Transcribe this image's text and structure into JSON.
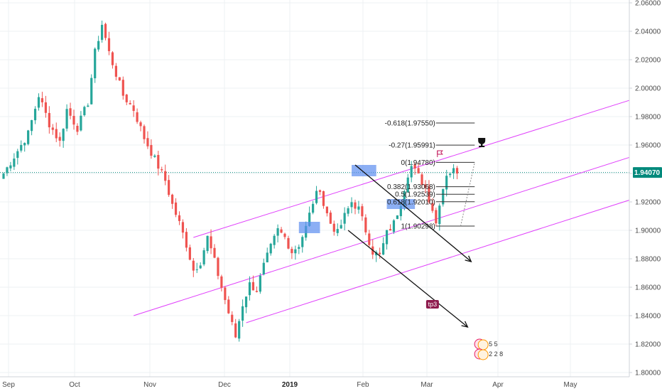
{
  "chart_data": {
    "type": "candlestick",
    "price_axis": {
      "ticks": [
        "2.06000",
        "2.04000",
        "2.02000",
        "2.00000",
        "1.98000",
        "1.96000",
        "1.94000",
        "1.92000",
        "1.90000",
        "1.88000",
        "1.86000",
        "1.84000",
        "1.82000",
        "1.80000"
      ],
      "range": [
        1.8,
        2.06
      ],
      "current_price": "1.94070",
      "current_price_color": "#00897b"
    },
    "time_axis": {
      "labels": [
        {
          "text": "Sep",
          "bold": false
        },
        {
          "text": "Oct",
          "bold": false
        },
        {
          "text": "Nov",
          "bold": false
        },
        {
          "text": "Dec",
          "bold": false
        },
        {
          "text": "2019",
          "bold": true
        },
        {
          "text": "Feb",
          "bold": false
        },
        {
          "text": "Mar",
          "bold": false
        },
        {
          "text": "Apr",
          "bold": false
        },
        {
          "text": "May",
          "bold": false
        }
      ]
    },
    "candle_colors": {
      "up": "#26a69a",
      "down": "#ef5350"
    },
    "close_path": [
      [
        0,
        1.94
      ],
      [
        3,
        1.952
      ],
      [
        7,
        1.968
      ],
      [
        10,
        1.995
      ],
      [
        13,
        1.975
      ],
      [
        16,
        1.962
      ],
      [
        18,
        1.985
      ],
      [
        21,
        1.972
      ],
      [
        24,
        1.99
      ],
      [
        26,
        2.025
      ],
      [
        28,
        2.045
      ],
      [
        30,
        2.025
      ],
      [
        32,
        2.01
      ],
      [
        34,
        1.995
      ],
      [
        37,
        1.985
      ],
      [
        40,
        1.965
      ],
      [
        42,
        1.955
      ],
      [
        44,
        1.945
      ],
      [
        46,
        1.935
      ],
      [
        48,
        1.918
      ],
      [
        50,
        1.905
      ],
      [
        52,
        1.89
      ],
      [
        54,
        1.872
      ],
      [
        56,
        1.878
      ],
      [
        58,
        1.895
      ],
      [
        60,
        1.878
      ],
      [
        62,
        1.86
      ],
      [
        64,
        1.842
      ],
      [
        66,
        1.825
      ],
      [
        68,
        1.848
      ],
      [
        70,
        1.862
      ],
      [
        72,
        1.858
      ],
      [
        74,
        1.875
      ],
      [
        76,
        1.888
      ],
      [
        78,
        1.9
      ],
      [
        80,
        1.895
      ],
      [
        82,
        1.885
      ],
      [
        84,
        1.89
      ],
      [
        86,
        1.902
      ],
      [
        88,
        1.92
      ],
      [
        90,
        1.93
      ],
      [
        91,
        1.918
      ],
      [
        93,
        1.905
      ],
      [
        95,
        1.898
      ],
      [
        97,
        1.91
      ],
      [
        99,
        1.92
      ],
      [
        101,
        1.915
      ],
      [
        103,
        1.9
      ],
      [
        105,
        1.885
      ],
      [
        107,
        1.882
      ],
      [
        109,
        1.898
      ],
      [
        111,
        1.905
      ],
      [
        113,
        1.92
      ],
      [
        115,
        1.94
      ],
      [
        116,
        1.945
      ],
      [
        118,
        1.938
      ],
      [
        120,
        1.93
      ],
      [
        122,
        1.915
      ],
      [
        123,
        1.905
      ],
      [
        124,
        1.92
      ],
      [
        126,
        1.94
      ],
      [
        128,
        1.942
      ],
      [
        129,
        1.94
      ]
    ],
    "channel": {
      "color": "#e040fb",
      "lines": [
        {
          "p1": [
            54,
            1.895
          ],
          "p2": [
            189,
            2.0
          ]
        },
        {
          "p1": [
            37,
            1.84
          ],
          "p2": [
            189,
            1.96
          ]
        },
        {
          "p1": [
            69,
            1.835
          ],
          "p2": [
            189,
            1.93
          ]
        }
      ]
    },
    "fib_retracement": {
      "color": "#333333",
      "levels": [
        {
          "label": "-0.618(1.97550)",
          "price": 1.9755
        },
        {
          "label": "-0.27(1.95991)",
          "price": 1.95991
        },
        {
          "label": "0(1.94780)",
          "price": 1.9478
        },
        {
          "label": "0.382(1.93068)",
          "price": 1.93068
        },
        {
          "label": "0.5(1.92539)",
          "price": 1.92539
        },
        {
          "label": "0.618(1.92010)",
          "price": 1.9201
        },
        {
          "label": "1(1.90298)",
          "price": 1.90298
        }
      ]
    },
    "highlight_boxes": [
      {
        "x": [
          84,
          90
        ],
        "price": [
          1.906,
          1.898
        ]
      },
      {
        "x": [
          99,
          106
        ],
        "price": [
          1.946,
          1.938
        ]
      },
      {
        "x": [
          109,
          117
        ],
        "price": [
          1.922,
          1.915
        ]
      }
    ],
    "arrows": [
      {
        "from": [
          100,
          1.946
        ],
        "to": [
          133,
          1.878
        ]
      },
      {
        "from": [
          98,
          1.9
        ],
        "to": [
          132,
          1.832
        ]
      }
    ],
    "annotations": [
      {
        "text": "tp3",
        "at": [
          122,
          1.848
        ]
      }
    ],
    "markers": [
      {
        "icon": "trophy-icon",
        "at": [
          136,
          1.962
        ]
      },
      {
        "icon": "flag-icon",
        "at": [
          124,
          1.954
        ]
      }
    ],
    "bubbles": [
      {
        "text": "5 5",
        "at": [
          137,
          1.82
        ]
      },
      {
        "text": "2 2 8",
        "at": [
          137,
          1.813
        ]
      }
    ]
  }
}
